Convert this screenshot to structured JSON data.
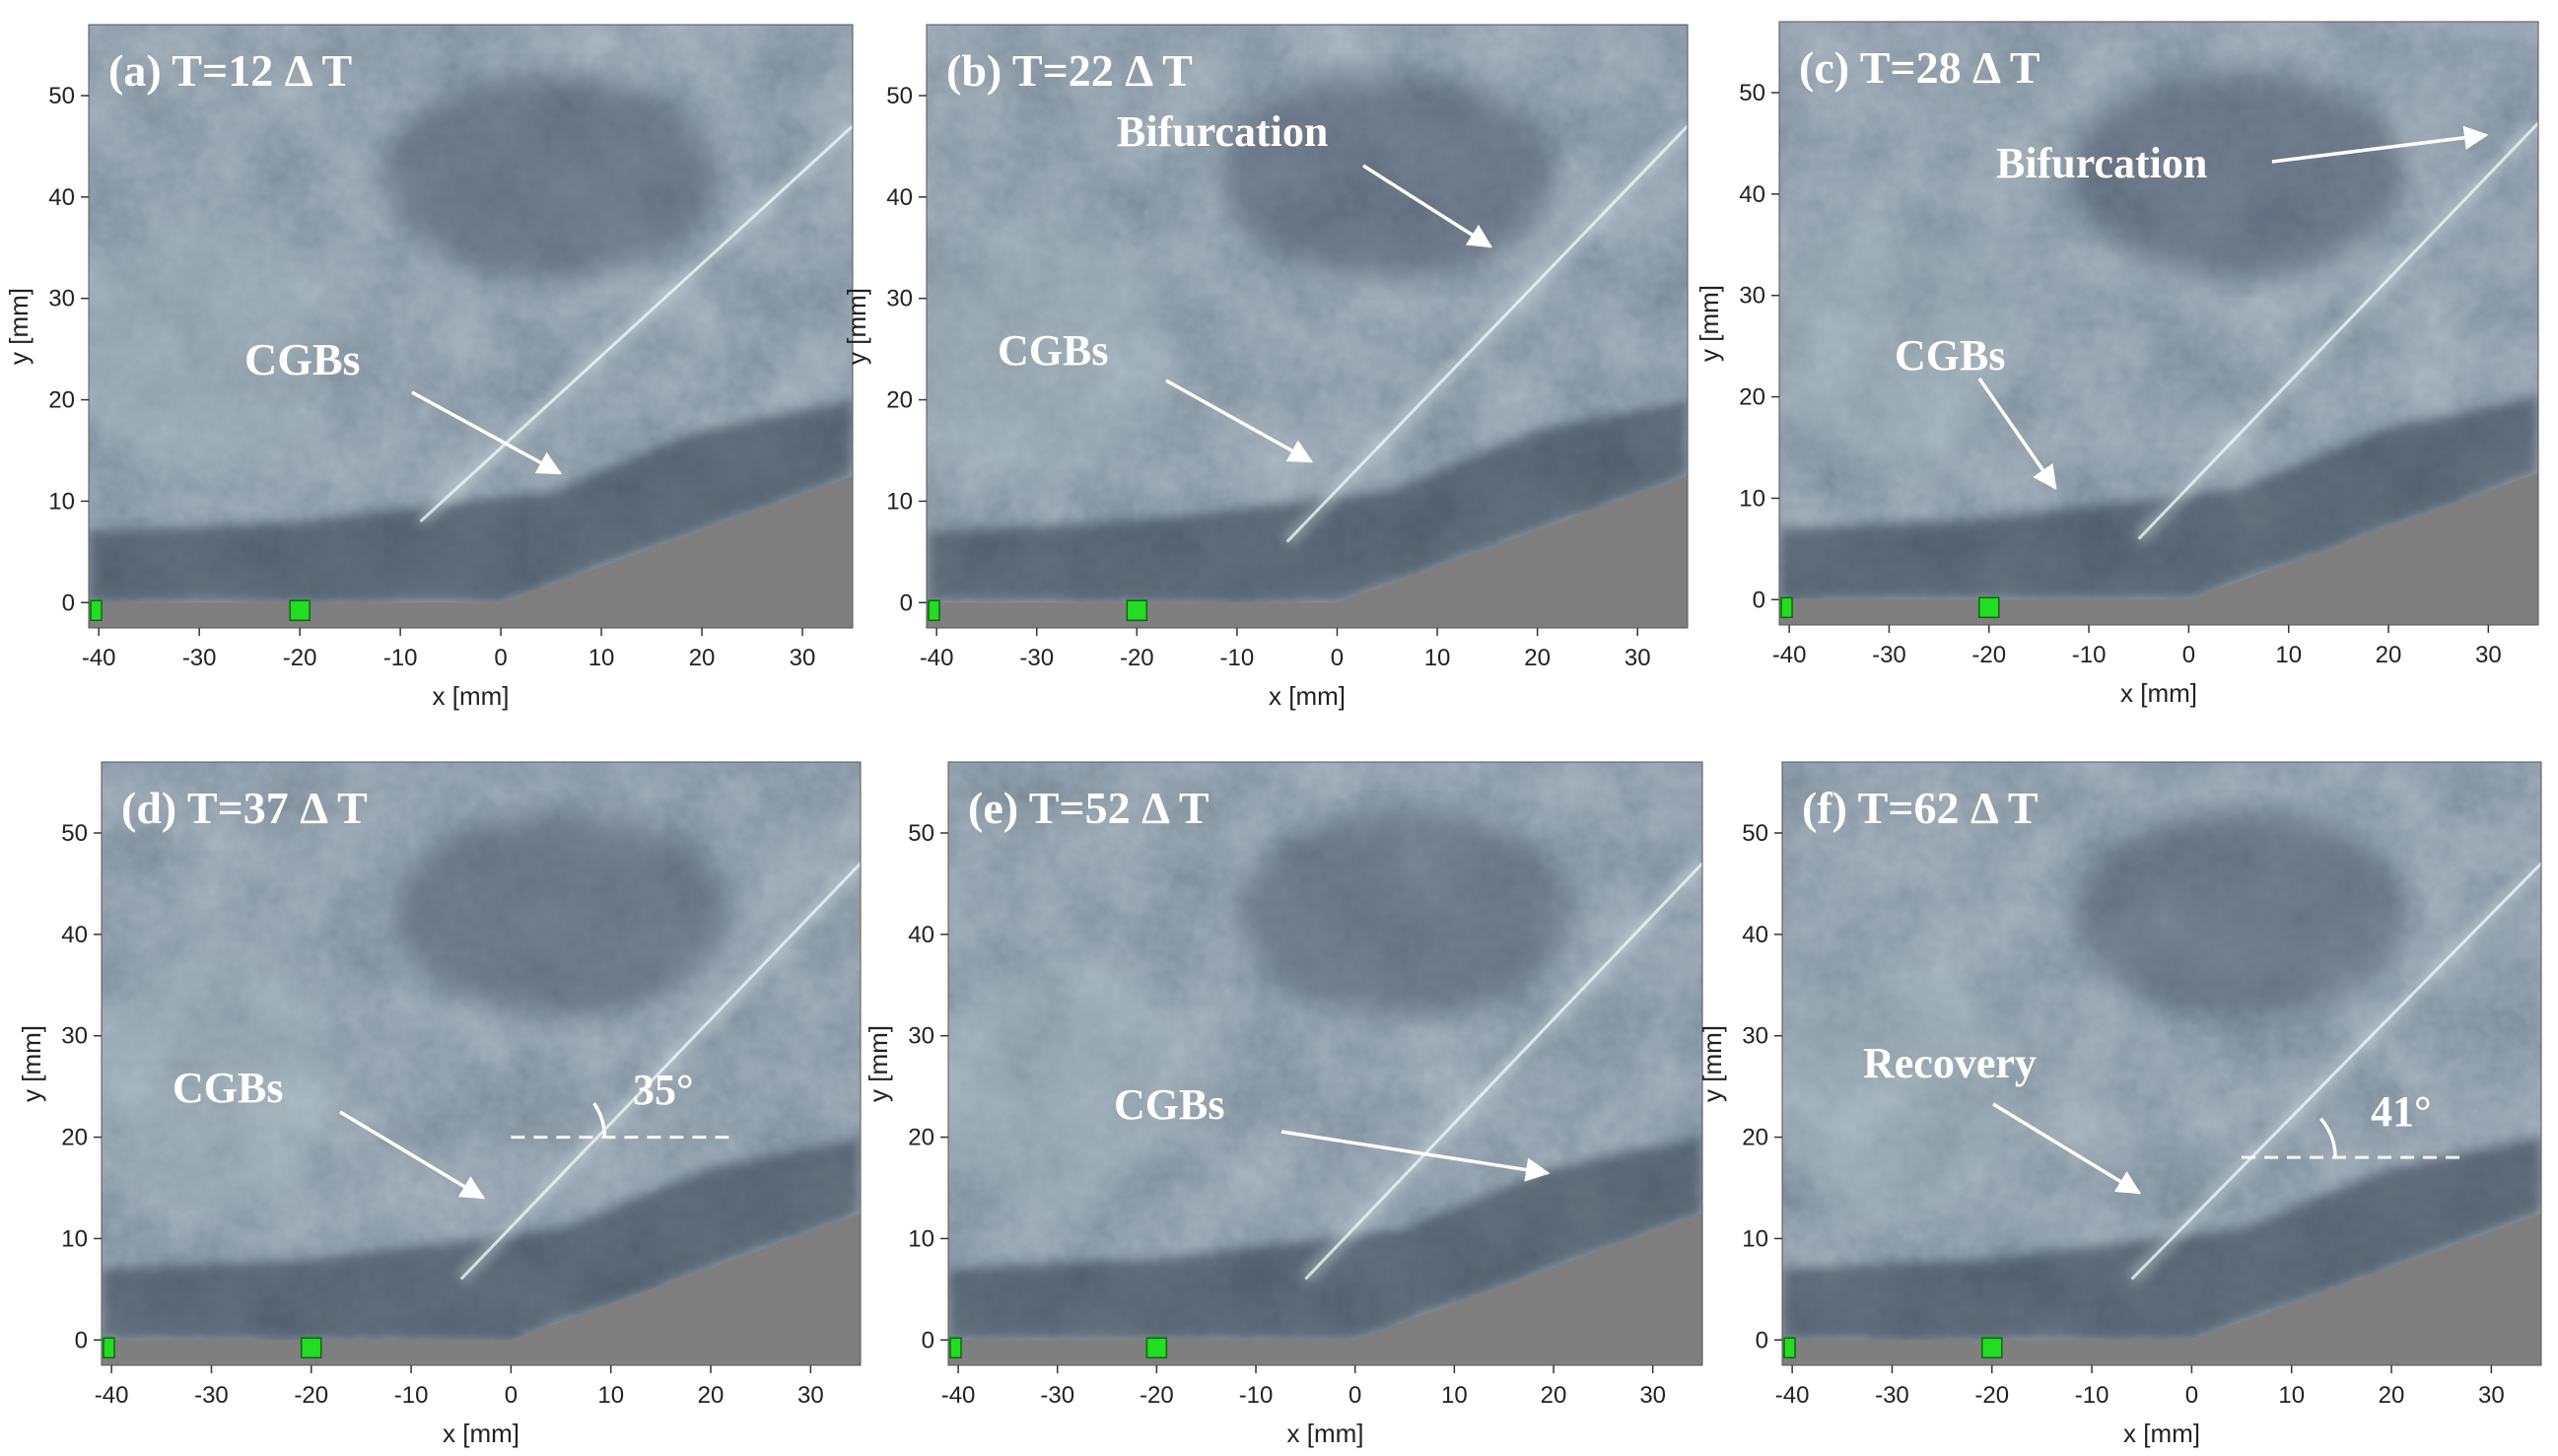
{
  "figure": {
    "x_ticks": [
      "-40",
      "-30",
      "-20",
      "-10",
      "0",
      "10",
      "20",
      "30"
    ],
    "y_ticks": [
      "0",
      "10",
      "20",
      "30",
      "40",
      "50"
    ],
    "xlabel": "x [mm]",
    "ylabel": "y [mm]",
    "colors": {
      "background_field": "#6f8090",
      "dark_field": "#3c4a5c",
      "light_field": "#a8bcc2",
      "wall": "#7f7f7f",
      "marker": "#22dd22",
      "annotation": "#ffffff"
    },
    "panels": [
      {
        "id": "a",
        "label": "(a) T=12 Δ T",
        "annotations": [
          {
            "text": "CGBs"
          }
        ]
      },
      {
        "id": "b",
        "label": "(b) T=22 Δ T",
        "annotations": [
          {
            "text": "Bifurcation"
          },
          {
            "text": "CGBs"
          }
        ]
      },
      {
        "id": "c",
        "label": "(c) T=28 Δ T",
        "annotations": [
          {
            "text": "Bifurcation"
          },
          {
            "text": "CGBs"
          }
        ]
      },
      {
        "id": "d",
        "label": "(d) T=37 Δ T",
        "annotations": [
          {
            "text": "CGBs"
          },
          {
            "text": "35°"
          }
        ]
      },
      {
        "id": "e",
        "label": "(e) T=52 Δ T",
        "annotations": [
          {
            "text": "CGBs"
          }
        ]
      },
      {
        "id": "f",
        "label": "(f) T=62 Δ T",
        "annotations": [
          {
            "text": "Recovery"
          },
          {
            "text": "41°"
          }
        ]
      }
    ]
  }
}
